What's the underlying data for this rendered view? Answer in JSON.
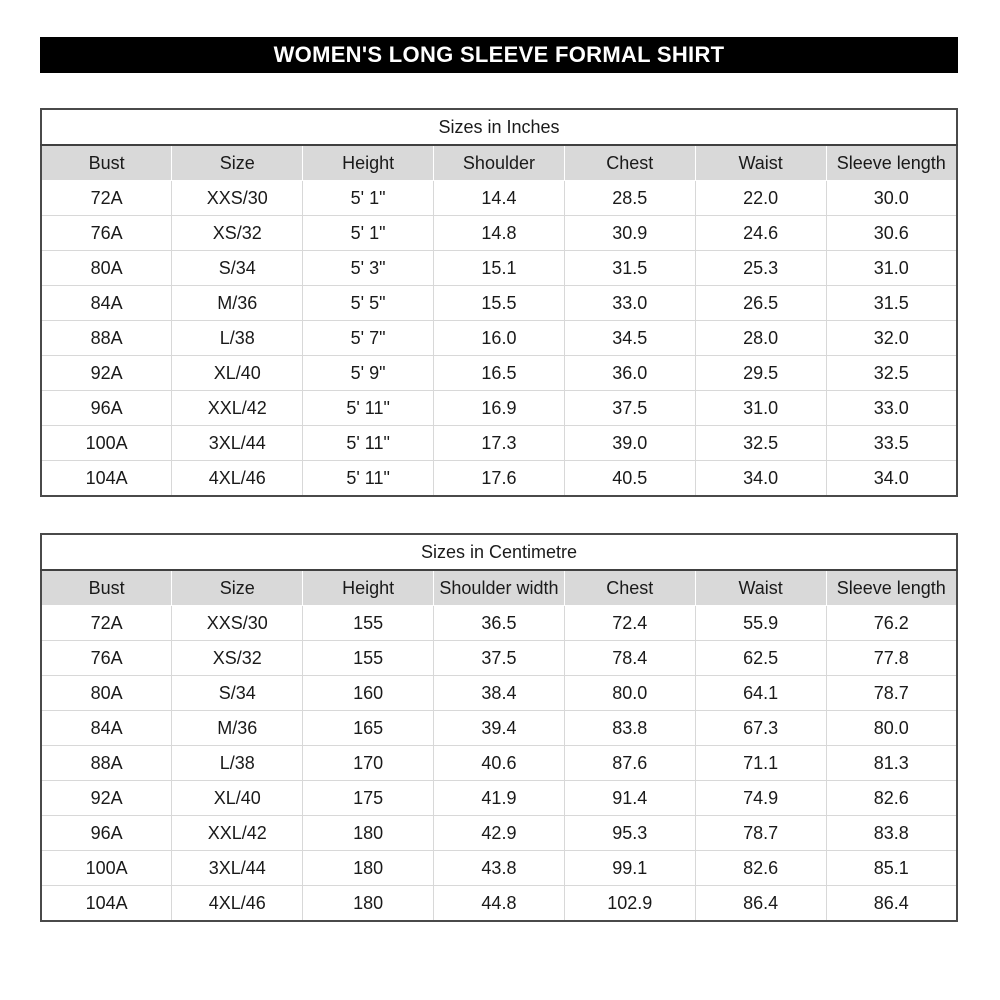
{
  "title": "WOMEN'S LONG SLEEVE FORMAL SHIRT",
  "colors": {
    "banner_bg": "#000000",
    "banner_text": "#ffffff",
    "header_row_bg": "#d9d9d9",
    "grid_line": "#d8d8d8",
    "outer_border": "#4a4a4a",
    "text": "#1a1a1a"
  },
  "tables": [
    {
      "caption": "Sizes in Inches",
      "columns": [
        "Bust",
        "Size",
        "Height",
        "Shoulder",
        "Chest",
        "Waist",
        "Sleeve length"
      ],
      "rows": [
        [
          "72A",
          "XXS/30",
          "5' 1\"",
          "14.4",
          "28.5",
          "22.0",
          "30.0"
        ],
        [
          "76A",
          "XS/32",
          "5' 1\"",
          "14.8",
          "30.9",
          "24.6",
          "30.6"
        ],
        [
          "80A",
          "S/34",
          "5' 3\"",
          "15.1",
          "31.5",
          "25.3",
          "31.0"
        ],
        [
          "84A",
          "M/36",
          "5' 5\"",
          "15.5",
          "33.0",
          "26.5",
          "31.5"
        ],
        [
          "88A",
          "L/38",
          "5' 7\"",
          "16.0",
          "34.5",
          "28.0",
          "32.0"
        ],
        [
          "92A",
          "XL/40",
          "5' 9\"",
          "16.5",
          "36.0",
          "29.5",
          "32.5"
        ],
        [
          "96A",
          "XXL/42",
          "5' 11\"",
          "16.9",
          "37.5",
          "31.0",
          "33.0"
        ],
        [
          "100A",
          "3XL/44",
          "5' 11\"",
          "17.3",
          "39.0",
          "32.5",
          "33.5"
        ],
        [
          "104A",
          "4XL/46",
          "5' 11\"",
          "17.6",
          "40.5",
          "34.0",
          "34.0"
        ]
      ]
    },
    {
      "caption": "Sizes in Centimetre",
      "columns": [
        "Bust",
        "Size",
        "Height",
        "Shoulder width",
        "Chest",
        "Waist",
        "Sleeve length"
      ],
      "rows": [
        [
          "72A",
          "XXS/30",
          "155",
          "36.5",
          "72.4",
          "55.9",
          "76.2"
        ],
        [
          "76A",
          "XS/32",
          "155",
          "37.5",
          "78.4",
          "62.5",
          "77.8"
        ],
        [
          "80A",
          "S/34",
          "160",
          "38.4",
          "80.0",
          "64.1",
          "78.7"
        ],
        [
          "84A",
          "M/36",
          "165",
          "39.4",
          "83.8",
          "67.3",
          "80.0"
        ],
        [
          "88A",
          "L/38",
          "170",
          "40.6",
          "87.6",
          "71.1",
          "81.3"
        ],
        [
          "92A",
          "XL/40",
          "175",
          "41.9",
          "91.4",
          "74.9",
          "82.6"
        ],
        [
          "96A",
          "XXL/42",
          "180",
          "42.9",
          "95.3",
          "78.7",
          "83.8"
        ],
        [
          "100A",
          "3XL/44",
          "180",
          "43.8",
          "99.1",
          "82.6",
          "85.1"
        ],
        [
          "104A",
          "4XL/46",
          "180",
          "44.8",
          "102.9",
          "86.4",
          "86.4"
        ]
      ]
    }
  ]
}
